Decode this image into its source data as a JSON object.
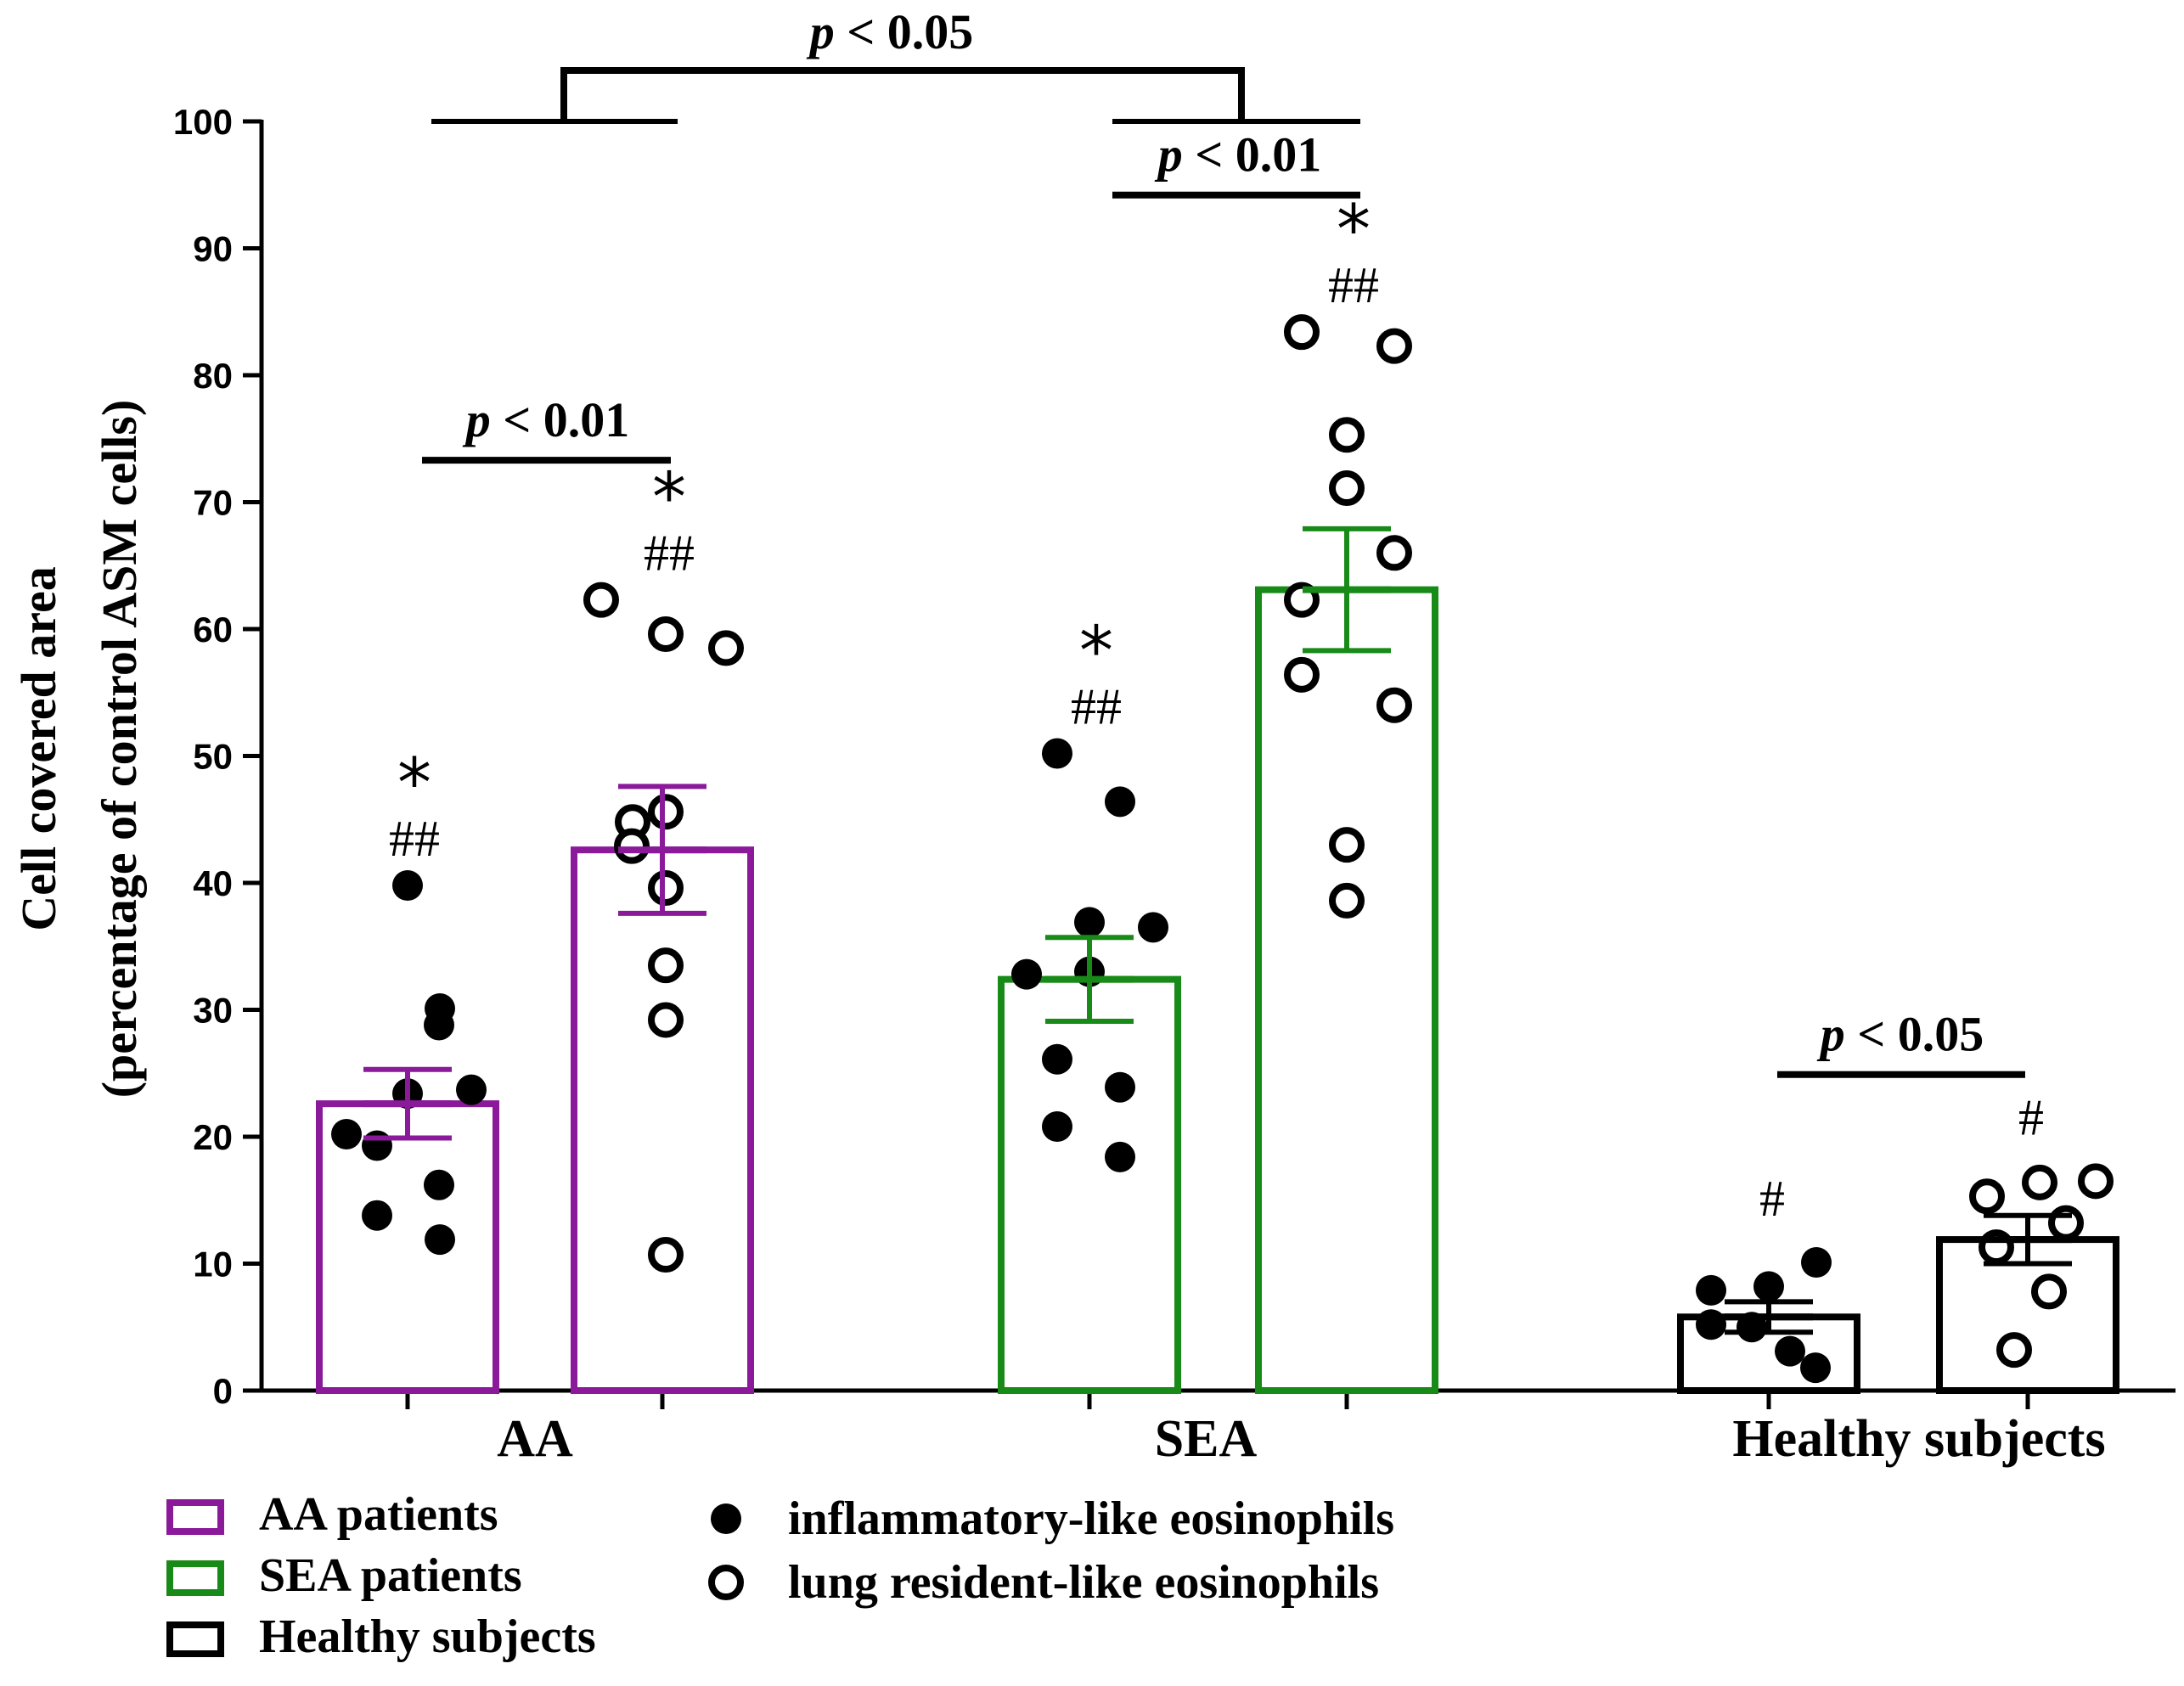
{
  "chart_data": {
    "type": "bar",
    "ylabel": "Cell covered area",
    "ylabel2": "(percentage of control ASM cells)",
    "ylim": [
      0,
      100
    ],
    "yticks": [
      "0",
      "10",
      "20",
      "30",
      "40",
      "50",
      "60",
      "70",
      "80",
      "90",
      "100"
    ],
    "groups": [
      "AA",
      "SEA",
      "Healthy subjects"
    ],
    "bars": [
      {
        "group": "AA",
        "subset": "inflammatory-like eosinophils",
        "color": "#8B1A9B",
        "mean": 22.6,
        "sem": 2.7,
        "points": [
          39.8,
          30.1,
          28.8,
          23.7,
          23.4,
          20.2,
          19.3,
          16.2,
          13.8,
          11.9
        ],
        "annotations": [
          "*",
          "##"
        ]
      },
      {
        "group": "AA",
        "subset": "lung resident-like eosinophils",
        "color": "#8B1A9B",
        "mean": 42.6,
        "sem": 5.0,
        "points": [
          62.3,
          59.6,
          58.5,
          45.6,
          44.8,
          42.9,
          39.6,
          33.5,
          29.2,
          10.7
        ],
        "annotations": [
          "*",
          "##"
        ]
      },
      {
        "group": "SEA",
        "subset": "inflammatory-like eosinophils",
        "color": "#188A18",
        "mean": 32.4,
        "sem": 3.3,
        "points": [
          50.2,
          46.4,
          36.9,
          36.5,
          33.0,
          32.8,
          26.1,
          23.9,
          20.8,
          18.4
        ],
        "annotations": [
          "*",
          "##"
        ]
      },
      {
        "group": "SEA",
        "subset": "lung resident-like eosinophils",
        "color": "#188A18",
        "mean": 63.1,
        "sem": 4.8,
        "points": [
          83.4,
          82.3,
          75.3,
          71.1,
          66.0,
          62.3,
          56.4,
          54.0,
          43.0,
          38.6
        ],
        "annotations": [
          "*",
          "##"
        ]
      },
      {
        "group": "Healthy subjects",
        "subset": "inflammatory-like eosinophils",
        "color": "#000000",
        "mean": 5.8,
        "sem": 1.2,
        "points": [
          10.1,
          8.2,
          7.9,
          5.2,
          5.0,
          3.1,
          1.8
        ],
        "annotations": [
          "#"
        ]
      },
      {
        "group": "Healthy subjects",
        "subset": "lung resident-like eosinophils",
        "color": "#000000",
        "mean": 11.9,
        "sem": 1.9,
        "points": [
          16.5,
          16.4,
          15.3,
          13.2,
          11.3,
          7.8,
          3.2
        ],
        "annotations": [
          "#"
        ]
      }
    ],
    "comparisons": [
      {
        "label_p": "p",
        "label_rest": " < 0.01",
        "between": "AA inflammatory vs AA lung resident"
      },
      {
        "label_p": "p",
        "label_rest": " < 0.01",
        "between": "SEA inflammatory vs SEA lung resident"
      },
      {
        "label_p": "p",
        "label_rest": " < 0.05",
        "between": "AA vs SEA"
      },
      {
        "label_p": "p",
        "label_rest": " < 0.05",
        "between": "Healthy inflammatory vs Healthy lung resident"
      }
    ],
    "legend": {
      "bars": [
        {
          "label": "AA patients",
          "color": "#8B1A9B"
        },
        {
          "label": "SEA patients",
          "color": "#188A18"
        },
        {
          "label": "Healthy subjects",
          "color": "#000000"
        }
      ],
      "markers": [
        {
          "label": "inflammatory-like eosinophils",
          "filled": true
        },
        {
          "label": "lung resident-like eosinophils",
          "filled": false
        }
      ]
    }
  }
}
